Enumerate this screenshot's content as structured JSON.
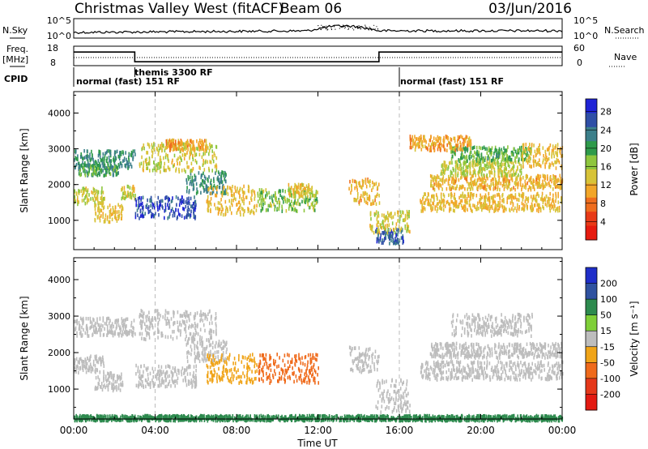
{
  "header": {
    "station": "Christmas Valley West (fitACF)",
    "beam": "Beam 06",
    "date": "03/Jun/2016"
  },
  "noise_panel": {
    "left_label": "N.Sky",
    "right_label": "N.Search",
    "left_ticks": [
      "10^5",
      "10^0"
    ],
    "right_ticks": [
      "10^5",
      "10^0"
    ]
  },
  "freq_panel": {
    "left_label_1": "Freq.",
    "left_label_2": "[MHz]",
    "right_label": "Nave",
    "left_ticks": [
      "18",
      "8"
    ],
    "right_ticks": [
      "60",
      "0"
    ],
    "freq_steps": [
      {
        "t_start": 0.0,
        "t_end": 3.0,
        "freq": 15
      },
      {
        "t_start": 3.0,
        "t_end": 15.0,
        "freq": 10
      },
      {
        "t_start": 15.0,
        "t_end": 24.0,
        "freq": 15
      }
    ]
  },
  "cpid": {
    "label": "CPID",
    "segments": [
      {
        "text": "normal (fast)  151 RF",
        "t_start": 0.0,
        "t_end": 3.9
      },
      {
        "text": "themis 3300 RF",
        "t_start": 3.0,
        "t_end": 4.0
      },
      {
        "text": "normal (fast)  151 RF",
        "t_start": 16.0,
        "t_end": 24.0
      }
    ]
  },
  "chart_data": [
    {
      "type": "heatmap",
      "quantity": "Power",
      "ylabel": "Slant Range [km]",
      "ylim": [
        180,
        4600
      ],
      "yticks": [
        "1000",
        "2000",
        "3000",
        "4000"
      ],
      "colorbar_label": "Power [dB]",
      "colorbar_ticks": [
        "4",
        "8",
        "12",
        "16",
        "20",
        "24",
        "28"
      ],
      "colorbar_colors": [
        "#1f23d6",
        "#2f4fa6",
        "#3c7f8a",
        "#2e9a4a",
        "#8ec63e",
        "#d7c338",
        "#f2a629",
        "#ef6d1e",
        "#e83a17",
        "#e61b0f"
      ],
      "dashed_times": [
        4,
        16
      ],
      "regions": [
        {
          "t0": 0.0,
          "t1": 3.0,
          "r0": 2500,
          "r1": 3000,
          "level": 22
        },
        {
          "t0": 0.2,
          "t1": 2.2,
          "r0": 2300,
          "r1": 2600,
          "level": 20
        },
        {
          "t0": 0.0,
          "t1": 1.5,
          "r0": 1500,
          "r1": 1950,
          "level": 14
        },
        {
          "t0": 1.0,
          "t1": 2.4,
          "r0": 1000,
          "r1": 1500,
          "level": 12
        },
        {
          "t0": 2.3,
          "t1": 3.0,
          "r0": 1650,
          "r1": 2000,
          "level": 14
        },
        {
          "t0": 3.0,
          "t1": 6.0,
          "r0": 1100,
          "r1": 1700,
          "level": 27
        },
        {
          "t0": 5.5,
          "t1": 7.5,
          "r0": 1800,
          "r1": 2400,
          "level": 22
        },
        {
          "t0": 3.2,
          "t1": 7.0,
          "r0": 2400,
          "r1": 3200,
          "level": 14
        },
        {
          "t0": 4.5,
          "t1": 6.5,
          "r0": 3000,
          "r1": 3300,
          "level": 10
        },
        {
          "t0": 6.5,
          "t1": 9.0,
          "r0": 1200,
          "r1": 2000,
          "level": 12
        },
        {
          "t0": 9.0,
          "t1": 12.0,
          "r0": 1300,
          "r1": 1900,
          "level": 17
        },
        {
          "t0": 10.5,
          "t1": 11.8,
          "r0": 1700,
          "r1": 2050,
          "level": 13
        },
        {
          "t0": 13.5,
          "t1": 15.0,
          "r0": 1500,
          "r1": 2200,
          "level": 11
        },
        {
          "t0": 14.8,
          "t1": 16.2,
          "r0": 400,
          "r1": 800,
          "level": 26
        },
        {
          "t0": 14.5,
          "t1": 16.5,
          "r0": 700,
          "r1": 1300,
          "level": 14
        },
        {
          "t0": 17.0,
          "t1": 24.0,
          "r0": 1300,
          "r1": 1800,
          "level": 12
        },
        {
          "t0": 17.5,
          "t1": 24.0,
          "r0": 1900,
          "r1": 2300,
          "level": 11
        },
        {
          "t0": 18.0,
          "t1": 22.0,
          "r0": 2300,
          "r1": 2700,
          "level": 15
        },
        {
          "t0": 18.5,
          "t1": 22.5,
          "r0": 2700,
          "r1": 3100,
          "level": 19
        },
        {
          "t0": 16.5,
          "t1": 19.5,
          "r0": 3000,
          "r1": 3400,
          "level": 10
        },
        {
          "t0": 22.0,
          "t1": 24.0,
          "r0": 2500,
          "r1": 3200,
          "level": 12
        }
      ]
    },
    {
      "type": "heatmap",
      "quantity": "Velocity",
      "ylabel": "Slant Range [km]",
      "ylim": [
        180,
        4600
      ],
      "yticks": [
        "1000",
        "2000",
        "3000",
        "4000"
      ],
      "xlabel": "Time UT",
      "xticks": [
        "00:00",
        "04:00",
        "08:00",
        "12:00",
        "16:00",
        "20:00",
        "00:00"
      ],
      "colorbar_label": "Velocity [m s⁻¹]",
      "colorbar_ticks": [
        "200",
        "100",
        "50",
        "15",
        "-15",
        "-50",
        "-100",
        "-200"
      ],
      "colorbar_colors": [
        "#1f2ec9",
        "#2f52a0",
        "#2d8a4e",
        "#7fcf38",
        "#bdbdbd",
        "#f0a418",
        "#ef6a1b",
        "#e5381a",
        "#e31a12"
      ],
      "dashed_times": [
        4,
        16
      ],
      "regions": [
        {
          "t0": 0.0,
          "t1": 3.0,
          "r0": 2500,
          "r1": 3000,
          "level": 0
        },
        {
          "t0": 0.0,
          "t1": 1.5,
          "r0": 1500,
          "r1": 1950,
          "level": 0
        },
        {
          "t0": 1.0,
          "t1": 2.4,
          "r0": 1000,
          "r1": 1500,
          "level": 0
        },
        {
          "t0": 3.0,
          "t1": 6.0,
          "r0": 1100,
          "r1": 1700,
          "level": 0
        },
        {
          "t0": 5.5,
          "t1": 7.5,
          "r0": 1800,
          "r1": 2400,
          "level": 0
        },
        {
          "t0": 3.2,
          "t1": 7.0,
          "r0": 2400,
          "r1": 3200,
          "level": 0
        },
        {
          "t0": 6.5,
          "t1": 9.0,
          "r0": 1200,
          "r1": 2000,
          "level": -30
        },
        {
          "t0": 9.0,
          "t1": 12.0,
          "r0": 1200,
          "r1": 2000,
          "level": -60
        },
        {
          "t0": 13.5,
          "t1": 15.0,
          "r0": 1500,
          "r1": 2200,
          "level": 0
        },
        {
          "t0": 14.8,
          "t1": 16.5,
          "r0": 400,
          "r1": 1300,
          "level": 0
        },
        {
          "t0": 17.0,
          "t1": 24.0,
          "r0": 1300,
          "r1": 1800,
          "level": 0
        },
        {
          "t0": 17.5,
          "t1": 24.0,
          "r0": 1900,
          "r1": 2300,
          "level": 0
        },
        {
          "t0": 18.5,
          "t1": 22.5,
          "r0": 2500,
          "r1": 3100,
          "level": 0
        },
        {
          "t0": 0.0,
          "t1": 24.0,
          "r0": 180,
          "r1": 320,
          "level": 20
        }
      ]
    }
  ]
}
